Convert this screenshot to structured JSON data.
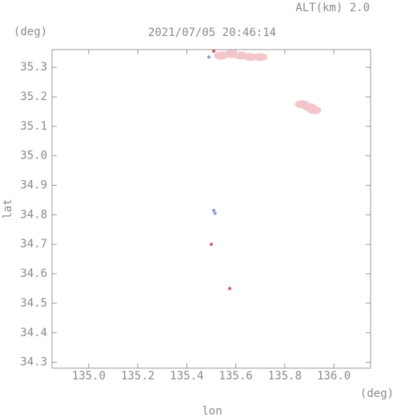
{
  "chart_data": {
    "type": "scatter",
    "title": "2021/07/05 20:46:14",
    "subtitle": "ALT(km) 2.0",
    "x_label": "lon",
    "y_label": "lat",
    "x_unit": "(deg)",
    "y_unit": "(deg)",
    "xlim": [
      134.85,
      136.15
    ],
    "ylim": [
      34.28,
      35.36
    ],
    "xticks": [
      {
        "value": 135,
        "label": "135.0"
      },
      135.2,
      135.4,
      135.6,
      135.8,
      {
        "value": 136,
        "label": "136.0"
      }
    ],
    "yticks": [
      34.3,
      34.4,
      34.5,
      34.6,
      34.7,
      34.8,
      34.9,
      {
        "value": 35,
        "label": "35.0"
      },
      35.1,
      35.2,
      35.3
    ],
    "series": [
      {
        "color": "#f4c6cc",
        "x": [
          135.54,
          135.58,
          135.62,
          135.66,
          135.7,
          135.87,
          135.9,
          135.92
        ],
        "y": [
          35.34,
          35.345,
          35.34,
          35.335,
          35.335,
          35.175,
          35.165,
          35.155
        ]
      },
      {
        "color": "#8a96e6",
        "x": [
          135.49,
          135.51,
          135.515
        ],
        "y": [
          35.335,
          34.815,
          34.805
        ]
      },
      {
        "color": "#e8505a",
        "x": [
          135.51,
          135.5,
          135.575
        ],
        "y": [
          35.355,
          34.7,
          34.55
        ]
      }
    ]
  }
}
